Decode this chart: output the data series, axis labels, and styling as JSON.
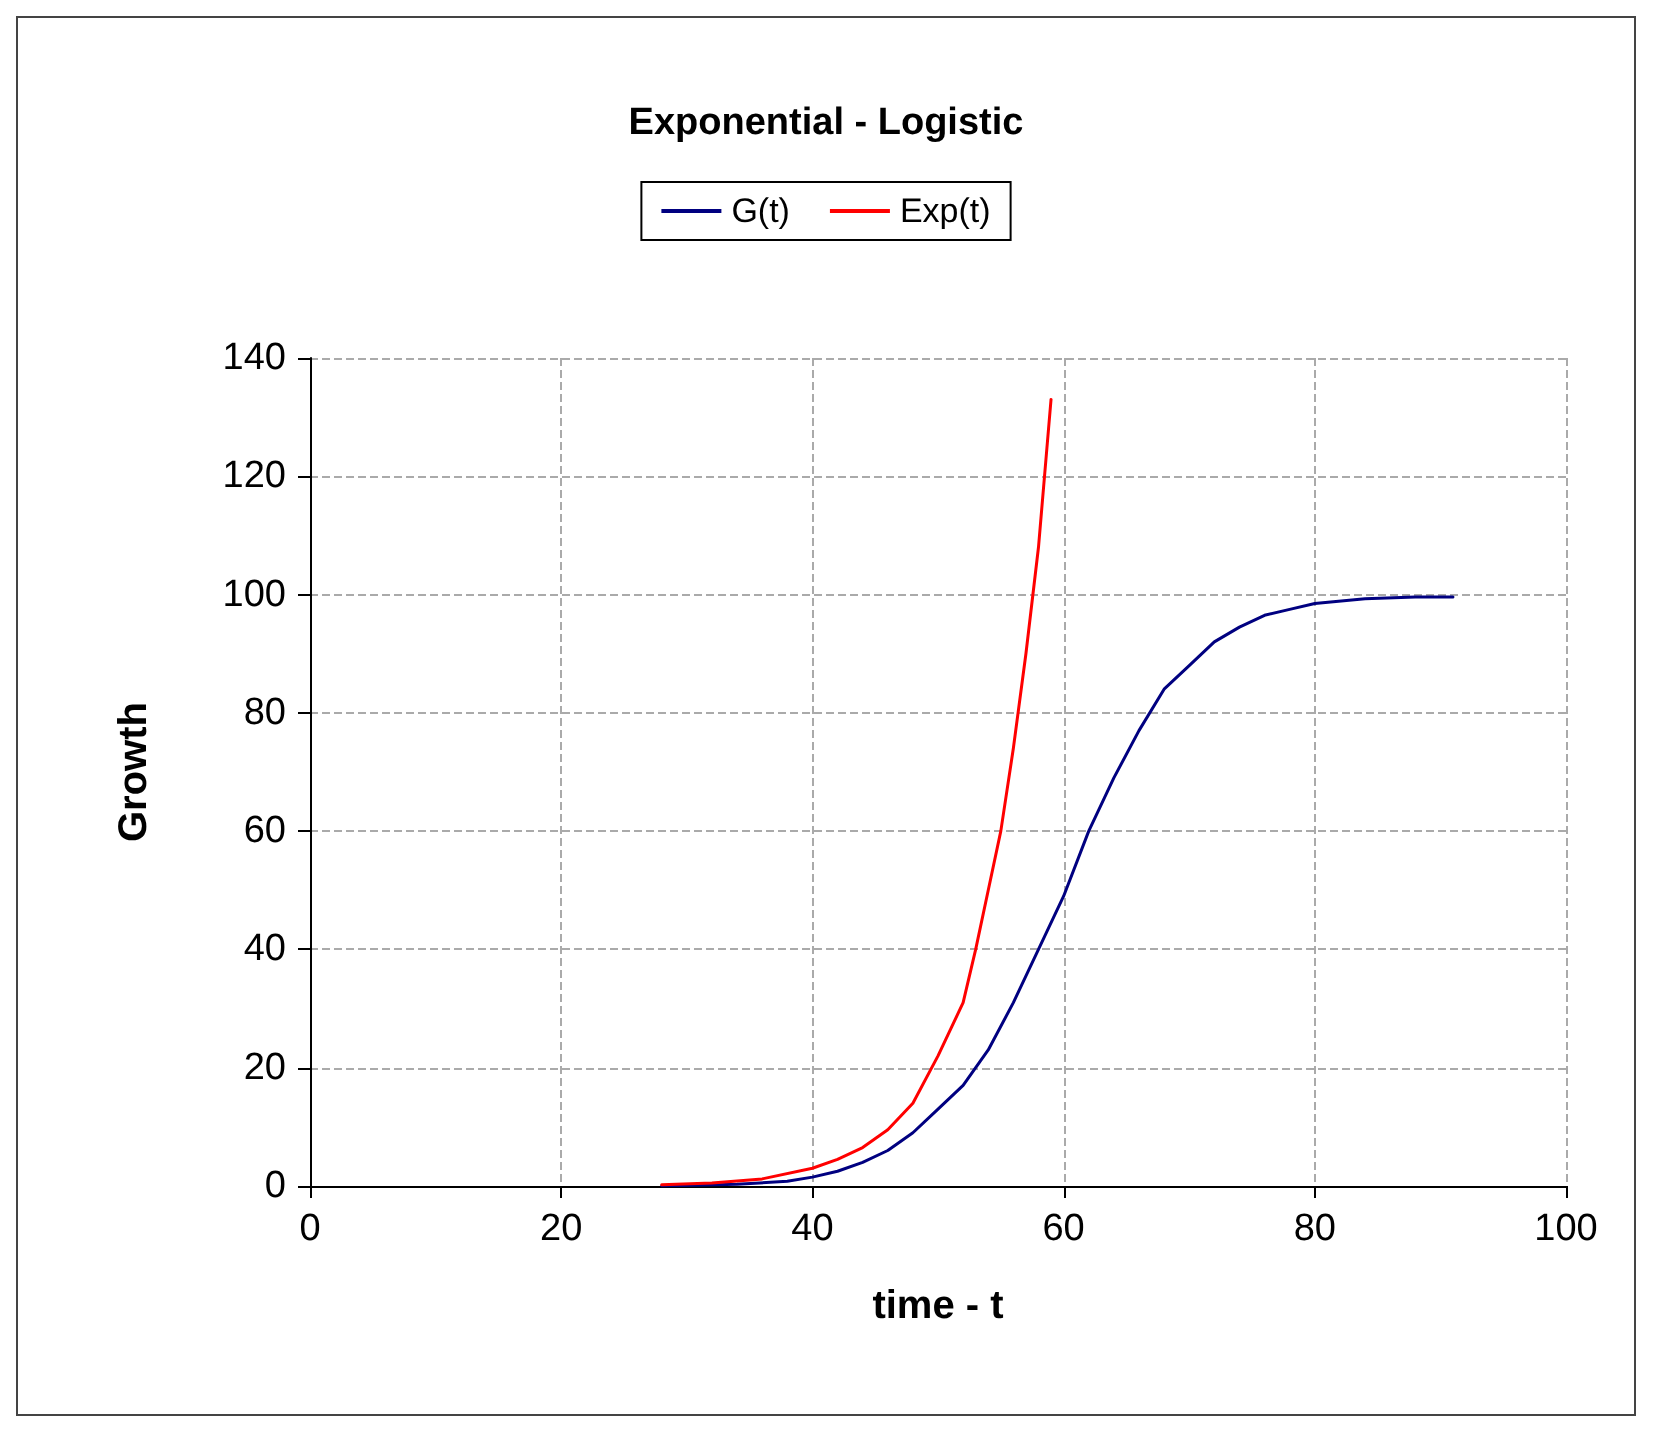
{
  "chart_data": {
    "type": "line",
    "title": "Exponential - Logistic",
    "xlabel": "time - t",
    "ylabel": "Growth",
    "xlim": [
      0,
      100
    ],
    "xticks": [
      0,
      20,
      40,
      60,
      80,
      100
    ],
    "ylim": [
      0,
      140
    ],
    "yticks": [
      0,
      20,
      40,
      60,
      80,
      100,
      120,
      140
    ],
    "grid": true,
    "legend": "top",
    "marker": "none",
    "line_style": "solid",
    "series": [
      {
        "name": "G(t)",
        "color": "#000080",
        "x": [
          28,
          34,
          38,
          40,
          42,
          44,
          46,
          48,
          50,
          52,
          53,
          54,
          56,
          58,
          60,
          62,
          64,
          66,
          68,
          70,
          72,
          74,
          76,
          78,
          80,
          84,
          88,
          91
        ],
        "values": [
          0,
          0.3,
          0.8,
          1.5,
          2.5,
          4,
          6,
          9,
          13,
          17,
          20,
          23,
          31,
          40,
          49,
          60,
          69,
          77,
          84,
          88,
          92,
          94.5,
          96.5,
          97.5,
          98.5,
          99.3,
          99.6,
          99.6
        ]
      },
      {
        "name": "Exp(t)",
        "color": "#ff0000",
        "x": [
          28,
          32,
          36,
          40,
          42,
          44,
          46,
          48,
          50,
          52,
          53,
          54,
          55,
          56,
          57,
          58,
          59
        ],
        "values": [
          0.2,
          0.5,
          1.2,
          3,
          4.5,
          6.5,
          9.5,
          14,
          22,
          31,
          40,
          50,
          60,
          74,
          90,
          108,
          133
        ]
      }
    ]
  }
}
